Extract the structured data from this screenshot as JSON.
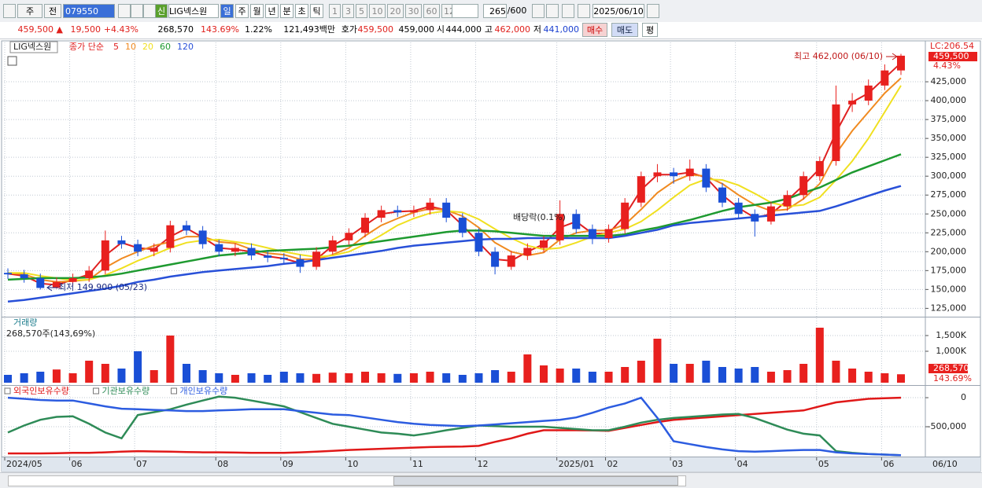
{
  "toolbar": {
    "view": "주",
    "prev": "전",
    "code": "079550",
    "market": "신",
    "name": "LIG넥스원",
    "periods": [
      "일",
      "주",
      "월",
      "년",
      "분",
      "초",
      "틱"
    ],
    "intervals": [
      "1",
      "3",
      "5",
      "10",
      "20",
      "30",
      "60",
      "120"
    ],
    "count": "265",
    "max": "/600",
    "date": "2025/06/10"
  },
  "quote": {
    "price": "459,500 ▲",
    "change": "19,500",
    "change_pct": "+4.43%",
    "volume": "268,570",
    "volume_ratio": "143.69%",
    "turnover": "1.22%",
    "amount": "121,493백만",
    "bid_ask_label": "호가",
    "ask": "459,500",
    "bid": "459,000",
    "open_label": "시",
    "open": "444,000",
    "high_label": "고",
    "high": "462,000",
    "low_label": "저",
    "low": "441,000",
    "buy": "매수",
    "sell": "매도",
    "eval": "평"
  },
  "chart_data": [
    {
      "type": "candlestick",
      "title": "LIG넥스원",
      "ma_label": "종가 단순",
      "lc_label": "LC:206.54",
      "last_label": "459,500",
      "last_change": "4.43%",
      "high_note": "최고 462,000 (06/10)",
      "low_note": "최저 149,900 (05/23)",
      "event_note": "배당락(0.1%)",
      "up_color": "#e8201e",
      "down_color": "#1a4fd6",
      "open": [
        172000,
        170000,
        165000,
        152000,
        160000,
        165000,
        175000,
        215000,
        210000,
        200000,
        205000,
        235000,
        228000,
        210000,
        200000,
        205000,
        195000,
        192000,
        190000,
        180000,
        200000,
        215000,
        225000,
        245000,
        255000,
        252000,
        255000,
        265000,
        245000,
        225000,
        200000,
        180000,
        195000,
        205000,
        215000,
        250000,
        230000,
        218000,
        230000,
        265000,
        300000,
        305000,
        300000,
        310000,
        285000,
        265000,
        250000,
        240000,
        260000,
        275000,
        300000,
        320000,
        395000,
        400000,
        420000,
        440000
      ],
      "high": [
        178000,
        176000,
        171000,
        166000,
        171000,
        181000,
        228000,
        221000,
        216000,
        211000,
        241000,
        241000,
        234000,
        216000,
        211000,
        211000,
        201000,
        198000,
        196000,
        206000,
        221000,
        231000,
        251000,
        261000,
        261000,
        261000,
        271000,
        271000,
        251000,
        231000,
        206000,
        201000,
        211000,
        221000,
        268000,
        256000,
        236000,
        236000,
        271000,
        306000,
        316000,
        311000,
        322000,
        316000,
        291000,
        271000,
        256000,
        266000,
        281000,
        306000,
        326000,
        420000,
        410000,
        428000,
        448000,
        462000
      ],
      "low": [
        164000,
        159000,
        149900,
        151000,
        155000,
        160000,
        170000,
        204000,
        194000,
        194000,
        199000,
        222000,
        204000,
        194000,
        194000,
        189000,
        186000,
        184000,
        172000,
        176000,
        196000,
        209000,
        219000,
        239000,
        246000,
        246000,
        249000,
        239000,
        219000,
        194000,
        170000,
        176000,
        189000,
        199000,
        209000,
        224000,
        210000,
        212000,
        224000,
        259000,
        292000,
        290000,
        294000,
        279000,
        259000,
        244000,
        220000,
        236000,
        254000,
        269000,
        294000,
        314000,
        385000,
        394000,
        414000,
        434000
      ],
      "close": [
        170000,
        165000,
        152000,
        160000,
        165000,
        175000,
        215000,
        210000,
        200000,
        205000,
        235000,
        228000,
        210000,
        200000,
        205000,
        195000,
        192000,
        190000,
        180000,
        200000,
        215000,
        225000,
        245000,
        255000,
        252000,
        255000,
        265000,
        245000,
        225000,
        200000,
        180000,
        195000,
        205000,
        215000,
        250000,
        230000,
        218000,
        230000,
        265000,
        300000,
        305000,
        300000,
        310000,
        285000,
        265000,
        250000,
        240000,
        260000,
        275000,
        300000,
        320000,
        395000,
        400000,
        420000,
        440000,
        459500
      ],
      "series": [
        {
          "name": "5",
          "color": "#e02020",
          "values": [
            171000,
            168000,
            158000,
            156000,
            163000,
            170000,
            195000,
            212000,
            205000,
            203000,
            220000,
            231000,
            219000,
            205000,
            203000,
            200000,
            194000,
            191000,
            185000,
            190000,
            208000,
            220000,
            235000,
            250000,
            253000,
            254000,
            260000,
            255000,
            235000,
            212000,
            190000,
            188000,
            200000,
            210000,
            232000,
            240000,
            224000,
            224000,
            248000,
            282000,
            302000,
            302000,
            305000,
            298000,
            275000,
            258000,
            245000,
            250000,
            268000,
            288000,
            310000,
            358000,
            398000,
            410000,
            430000,
            450000
          ]
        },
        {
          "name": "10",
          "color": "#f08a20",
          "values": [
            172000,
            170000,
            163000,
            160000,
            161000,
            163000,
            179000,
            191000,
            200000,
            208000,
            213000,
            220000,
            220000,
            213000,
            211000,
            203000,
            198000,
            196000,
            190000,
            190000,
            196000,
            205000,
            221000,
            235000,
            244000,
            252000,
            257000,
            255000,
            247000,
            232000,
            212000,
            200000,
            195000,
            199000,
            216000,
            225000,
            228000,
            228000,
            236000,
            256000,
            278000,
            293000,
            302000,
            300000,
            290000,
            275000,
            262000,
            254000,
            256000,
            270000,
            290000,
            330000,
            360000,
            385000,
            410000,
            430000
          ]
        },
        {
          "name": "20",
          "color": "#f0e020",
          "values": [
            172000,
            172000,
            168000,
            165000,
            162000,
            163000,
            169000,
            178000,
            188000,
            196000,
            205000,
            212000,
            215000,
            216000,
            213000,
            210000,
            205000,
            200000,
            196000,
            193000,
            195000,
            200000,
            210000,
            222000,
            235000,
            244000,
            251000,
            254000,
            252000,
            243000,
            230000,
            218000,
            208000,
            203000,
            205000,
            212000,
            220000,
            225000,
            230000,
            240000,
            255000,
            272000,
            288000,
            296000,
            295000,
            288000,
            277000,
            265000,
            260000,
            262000,
            272000,
            295000,
            320000,
            350000,
            385000,
            420000
          ]
        },
        {
          "name": "60",
          "color": "#1e9a30",
          "values": [
            163000,
            164000,
            165000,
            165000,
            165000,
            166000,
            168000,
            171000,
            175000,
            179000,
            183000,
            187000,
            191000,
            195000,
            197000,
            199000,
            201000,
            202000,
            203000,
            204000,
            206000,
            208000,
            211000,
            214000,
            217000,
            220000,
            223000,
            226000,
            228000,
            228000,
            227000,
            225000,
            223000,
            221000,
            221000,
            221000,
            221000,
            221000,
            223000,
            228000,
            232000,
            237000,
            242000,
            248000,
            254000,
            259000,
            262000,
            265000,
            270000,
            278000,
            285000,
            295000,
            305000,
            313000,
            321000,
            329000
          ]
        },
        {
          "name": "120",
          "color": "#2850d8",
          "values": [
            134000,
            136000,
            139000,
            142000,
            145000,
            148000,
            151000,
            155000,
            160000,
            163000,
            167000,
            170000,
            173000,
            175000,
            177000,
            179000,
            181000,
            184000,
            186000,
            189000,
            192000,
            195000,
            198000,
            201000,
            205000,
            208000,
            210000,
            212000,
            214000,
            216000,
            217000,
            217000,
            218000,
            218000,
            218000,
            218000,
            218000,
            218000,
            221000,
            225000,
            229000,
            235000,
            238000,
            240000,
            242000,
            244000,
            246000,
            248000,
            250000,
            252000,
            254000,
            260000,
            267000,
            274000,
            281000,
            287000
          ]
        }
      ],
      "ylim": [
        115000,
        475000
      ],
      "yticks": [
        {
          "value": 125000,
          "label": "125,000"
        },
        {
          "value": 150000,
          "label": "150,000"
        },
        {
          "value": 175000,
          "label": "175,000"
        },
        {
          "value": 200000,
          "label": "200,000"
        },
        {
          "value": 225000,
          "label": "225,000"
        },
        {
          "value": 250000,
          "label": "250,000"
        },
        {
          "value": 275000,
          "label": "275,000"
        },
        {
          "value": 300000,
          "label": "300,000"
        },
        {
          "value": 325000,
          "label": "325,000"
        },
        {
          "value": 350000,
          "label": "350,000"
        },
        {
          "value": 375000,
          "label": "375,000"
        },
        {
          "value": 400000,
          "label": "400,000"
        },
        {
          "value": 425000,
          "label": "425,000"
        }
      ],
      "grid": true
    },
    {
      "type": "bar",
      "title": "거래량",
      "subtitle": "268,570주(143,69%)",
      "last_label": "268,570",
      "last_ratio": "143.69%",
      "values": [
        250000,
        300000,
        350000,
        420000,
        300000,
        700000,
        600000,
        450000,
        1000000,
        400000,
        1500000,
        600000,
        400000,
        300000,
        250000,
        300000,
        250000,
        350000,
        300000,
        280000,
        320000,
        300000,
        350000,
        300000,
        280000,
        300000,
        350000,
        300000,
        250000,
        300000,
        400000,
        350000,
        900000,
        550000,
        450000,
        450000,
        350000,
        350000,
        500000,
        700000,
        1400000,
        600000,
        600000,
        700000,
        500000,
        450000,
        500000,
        350000,
        400000,
        600000,
        1750000,
        700000,
        450000,
        350000,
        300000,
        268570
      ],
      "ylim": [
        0,
        2050000
      ],
      "yticks": [
        {
          "value": 1000000,
          "label": "1,000K"
        },
        {
          "value": 1500000,
          "label": "1,500K"
        }
      ],
      "grid": true
    },
    {
      "type": "line",
      "end_label": "06/10",
      "categories": [
        "2024/05",
        null,
        null,
        null,
        "06",
        null,
        null,
        null,
        "07",
        null,
        null,
        null,
        null,
        "08",
        null,
        null,
        null,
        "09",
        null,
        null,
        null,
        "10",
        null,
        null,
        null,
        "11",
        null,
        null,
        null,
        "12",
        null,
        null,
        null,
        null,
        "2025/01",
        null,
        null,
        "02",
        null,
        null,
        null,
        "03",
        null,
        null,
        null,
        "04",
        null,
        null,
        null,
        null,
        "05",
        null,
        null,
        null,
        "06",
        null
      ],
      "series": [
        {
          "name": "외국인보유수량",
          "color": "#e01818",
          "values": [
            -960000,
            -960000,
            -960000,
            -955000,
            -950000,
            -950000,
            -940000,
            -930000,
            -920000,
            -925000,
            -930000,
            -935000,
            -940000,
            -940000,
            -945000,
            -950000,
            -950000,
            -950000,
            -940000,
            -930000,
            -915000,
            -900000,
            -890000,
            -880000,
            -870000,
            -860000,
            -850000,
            -845000,
            -840000,
            -830000,
            -760000,
            -700000,
            -620000,
            -560000,
            -560000,
            -560000,
            -565000,
            -570000,
            -520000,
            -470000,
            -420000,
            -380000,
            -360000,
            -340000,
            -320000,
            -300000,
            -280000,
            -260000,
            -240000,
            -220000,
            -150000,
            -80000,
            -50000,
            -20000,
            -10000,
            0
          ]
        },
        {
          "name": "기관보유수량",
          "color": "#2e8b57",
          "values": [
            -600000,
            -480000,
            -380000,
            -330000,
            -320000,
            -450000,
            -600000,
            -700000,
            -300000,
            -250000,
            -200000,
            -120000,
            -50000,
            20000,
            0,
            -50000,
            -100000,
            -150000,
            -250000,
            -350000,
            -450000,
            -500000,
            -550000,
            -600000,
            -620000,
            -650000,
            -610000,
            -560000,
            -520000,
            -480000,
            -490000,
            -500000,
            -500000,
            -500000,
            -520000,
            -540000,
            -560000,
            -560000,
            -500000,
            -430000,
            -380000,
            -350000,
            -330000,
            -310000,
            -290000,
            -280000,
            -350000,
            -450000,
            -550000,
            -620000,
            -650000,
            -920000,
            -950000,
            -970000,
            -980000,
            -990000
          ]
        },
        {
          "name": "개인보유수량",
          "color": "#2c5ce0",
          "values": [
            0,
            -20000,
            -40000,
            -50000,
            -50000,
            -100000,
            -150000,
            -190000,
            -200000,
            -210000,
            -220000,
            -230000,
            -230000,
            -220000,
            -210000,
            -200000,
            -200000,
            -200000,
            -230000,
            -260000,
            -290000,
            -300000,
            -340000,
            -380000,
            -420000,
            -450000,
            -470000,
            -480000,
            -490000,
            -480000,
            -460000,
            -440000,
            -420000,
            -400000,
            -380000,
            -340000,
            -260000,
            -170000,
            -100000,
            0,
            -350000,
            -750000,
            -800000,
            -850000,
            -890000,
            -920000,
            -930000,
            -920000,
            -910000,
            -900000,
            -900000,
            -940000,
            -960000,
            -970000,
            -980000,
            -990000
          ]
        }
      ],
      "ylim": [
        -1000000,
        190000
      ],
      "yticks": [
        {
          "value": -500000,
          "label": "-500,000"
        },
        0
      ],
      "grid": true
    }
  ]
}
